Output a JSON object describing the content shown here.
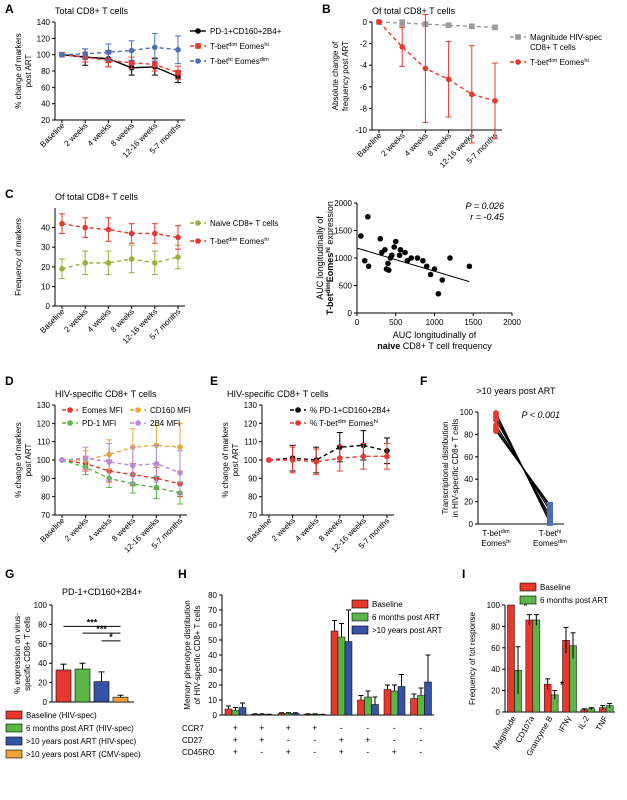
{
  "colors": {
    "red": "#e8382d",
    "blue": "#4a6fb5",
    "green": "#5bb547",
    "darkblue": "#3552a6",
    "orange": "#f1a23b",
    "gray": "#9a9a9a",
    "olive": "#9ab03a",
    "purple": "#b98ad6",
    "black": "#000000",
    "gold": "#e8a93a"
  },
  "time_cats": [
    "Baseline",
    "2 weeks",
    "4 weeks",
    "8 weeks",
    "12-16 weeks",
    "5-7 months"
  ],
  "chart_data": [
    {
      "panel": "A",
      "title": "Total CD8+ T cells",
      "type": "line",
      "ylabel": [
        "% change of markers",
        "post ART"
      ],
      "ylim": [
        20,
        140
      ],
      "yticks": [
        20,
        40,
        60,
        80,
        100,
        120,
        140
      ],
      "series": [
        {
          "name": "PD-1+CD160+2B4+",
          "color": "#000000",
          "dash": false,
          "values": [
            100,
            97,
            95,
            84,
            85,
            73
          ],
          "err": [
            0,
            10,
            10,
            9,
            10,
            7
          ]
        },
        {
          "name": "T-bet^dim Eomes^hi",
          "color": "#e8382d",
          "dash": true,
          "values": [
            100,
            97,
            93,
            90,
            88,
            78
          ],
          "err": [
            0,
            6,
            8,
            7,
            8,
            8
          ]
        },
        {
          "name": "T-bet^hi Eomes^dim",
          "color": "#4a6fb5",
          "dash": true,
          "values": [
            100,
            101,
            103,
            105,
            109,
            106
          ],
          "err": [
            0,
            6,
            10,
            12,
            17,
            17
          ]
        }
      ]
    },
    {
      "panel": "B",
      "title": "Of total CD8+ T cells",
      "type": "line",
      "ylabel": [
        "Absolute change of",
        "frequency post ART"
      ],
      "ylim": [
        -10,
        0
      ],
      "yticks": [
        -10,
        -8,
        -6,
        -4,
        -2,
        0
      ],
      "series": [
        {
          "name": "Magnitude HIV-spec CD8+ T cells",
          "color": "#9a9a9a",
          "dash": true,
          "values": [
            0,
            -0.1,
            -0.2,
            -0.3,
            -0.4,
            -0.5
          ],
          "err": [
            0,
            0.3,
            0.2,
            0.2,
            0.2,
            0.2
          ]
        },
        {
          "name": "T-bet^dim Eomes^hi",
          "color": "#e8382d",
          "dash": true,
          "values": [
            0,
            -2.3,
            -4.3,
            -5.3,
            -6.7,
            -7.3
          ],
          "err": [
            0,
            1.8,
            5.0,
            3.5,
            4.5,
            3.5
          ]
        }
      ]
    },
    {
      "panel": "C",
      "title": "Of total CD8+ T cells",
      "type": "line",
      "ylabel": [
        "Frequency of markers"
      ],
      "ylim": [
        0,
        50
      ],
      "yticks": [
        0,
        10,
        20,
        30,
        40
      ],
      "series": [
        {
          "name": "Naive CD8+ T cells",
          "color": "#9ab03a",
          "dash": true,
          "values": [
            19,
            22,
            22,
            24,
            22,
            25
          ],
          "err": [
            5,
            6,
            6,
            7,
            6,
            6
          ]
        },
        {
          "name": "T-bet^dim Eomes^hi",
          "color": "#e8382d",
          "dash": true,
          "values": [
            42,
            40,
            39,
            37,
            37,
            35
          ],
          "err": [
            5,
            5,
            6,
            5,
            5,
            6
          ]
        }
      ]
    },
    {
      "panel": "C2",
      "type": "scatter",
      "stats": [
        "P = 0.026",
        "r = -0.45"
      ],
      "xlabel": [
        "AUC longitudinally of",
        "naive CD8+ T cell frequency"
      ],
      "ylabel": [
        "AUC longitudinally of",
        "T-bet^dim Eomes^hi expression"
      ],
      "xlim": [
        0,
        2000
      ],
      "ylim": [
        0,
        2000
      ],
      "xticks": [
        0,
        500,
        1000,
        1500,
        2000
      ],
      "yticks": [
        0,
        500,
        1000,
        1500,
        2000
      ],
      "points": [
        [
          50,
          1400
        ],
        [
          100,
          950
        ],
        [
          140,
          1750
        ],
        [
          150,
          850
        ],
        [
          300,
          1350
        ],
        [
          320,
          1100
        ],
        [
          360,
          1150
        ],
        [
          380,
          800
        ],
        [
          400,
          900
        ],
        [
          410,
          780
        ],
        [
          430,
          1000
        ],
        [
          450,
          1050
        ],
        [
          480,
          1200
        ],
        [
          500,
          1300
        ],
        [
          550,
          1050
        ],
        [
          560,
          1150
        ],
        [
          620,
          1100
        ],
        [
          650,
          950
        ],
        [
          700,
          1000
        ],
        [
          780,
          1000
        ],
        [
          850,
          950
        ],
        [
          900,
          850
        ],
        [
          950,
          700
        ],
        [
          1000,
          800
        ],
        [
          1050,
          350
        ],
        [
          1100,
          600
        ],
        [
          1200,
          1000
        ],
        [
          1450,
          850
        ]
      ],
      "fit": [
        [
          0,
          1180
        ],
        [
          1450,
          570
        ]
      ]
    },
    {
      "panel": "D",
      "title": "HIV-specific CD8+ T cells",
      "type": "line",
      "ylabel": [
        "% change of markers",
        "post ART"
      ],
      "ylim": [
        70,
        130
      ],
      "yticks": [
        70,
        80,
        90,
        100,
        110,
        120,
        130
      ],
      "series": [
        {
          "name": "Eomes MFI",
          "color": "#e8382d",
          "dash": true,
          "values": [
            100,
            98,
            94,
            92,
            90,
            87
          ],
          "err": [
            0,
            4,
            6,
            6,
            6,
            7
          ]
        },
        {
          "name": "PD-1 MFI",
          "color": "#5bb547",
          "dash": true,
          "values": [
            100,
            96,
            90,
            87,
            85,
            82
          ],
          "err": [
            0,
            4,
            5,
            5,
            6,
            6
          ]
        },
        {
          "name": "CD160 MFI",
          "color": "#e8a93a",
          "dash": true,
          "values": [
            100,
            100,
            103,
            107,
            108,
            107
          ],
          "err": [
            0,
            5,
            8,
            10,
            11,
            13
          ]
        },
        {
          "name": "2B4 MFI",
          "color": "#b98ad6",
          "dash": true,
          "values": [
            100,
            101,
            99,
            97,
            98,
            93
          ],
          "err": [
            0,
            6,
            10,
            10,
            10,
            12
          ]
        }
      ]
    },
    {
      "panel": "E",
      "title": "HIV-specific CD8+ T cells",
      "type": "line",
      "ylabel": [
        "% change of markers",
        "post ART"
      ],
      "ylim": [
        70,
        130
      ],
      "yticks": [
        70,
        80,
        90,
        100,
        110,
        120,
        130
      ],
      "series": [
        {
          "name": "% PD-1+CD160+2B4+",
          "color": "#000000",
          "dash": true,
          "values": [
            100,
            101,
            100,
            107,
            108,
            105
          ],
          "err": [
            0,
            7,
            7,
            8,
            8,
            7
          ]
        },
        {
          "name": "% T-bet^dim Eomes^hi",
          "color": "#e8382d",
          "dash": true,
          "values": [
            100,
            100,
            99,
            101,
            102,
            102
          ],
          "err": [
            0,
            7,
            7,
            7,
            7,
            7
          ]
        }
      ]
    },
    {
      "panel": "F",
      "title": ">10 years post ART",
      "type": "paired",
      "stats": [
        "P < 0.001"
      ],
      "ylabel": [
        "Transcriptional distribution",
        "in HIV-specific CD8+ T cells"
      ],
      "ylim": [
        0,
        100
      ],
      "yticks": [
        0,
        20,
        40,
        60,
        80,
        100
      ],
      "categories": [
        "T-bet^dim Eomes^hi",
        "T-bet^hi Eomes^dim"
      ],
      "pairs": [
        [
          99,
          1
        ],
        [
          96,
          4
        ],
        [
          93,
          7
        ],
        [
          88,
          12
        ],
        [
          85,
          15
        ],
        [
          83,
          17
        ]
      ]
    },
    {
      "panel": "G",
      "title": "PD-1+CD160+2B4+",
      "type": "bar",
      "ylabel": [
        "% expression on virus-",
        "specific CD8+ T cells"
      ],
      "ylim": [
        0,
        100
      ],
      "yticks": [
        0,
        20,
        40,
        60,
        80,
        100
      ],
      "series": [
        {
          "name": "Baseline (HIV-spec)",
          "color": "#e8382d",
          "value": 33,
          "err": 6
        },
        {
          "name": "6 months post ART (HIV-spec)",
          "color": "#5bb547",
          "value": 34,
          "err": 6
        },
        {
          "name": ">10 years post ART (HIV-spec)",
          "color": "#3552a6",
          "value": 21,
          "err": 10
        },
        {
          "name": ">10 years post ART (CMV-spec)",
          "color": "#f1a23b",
          "value": 5,
          "err": 2
        }
      ],
      "significance": [
        {
          "from": 0,
          "to": 3,
          "label": "***"
        },
        {
          "from": 1,
          "to": 3,
          "label": "***"
        },
        {
          "from": 2,
          "to": 3,
          "label": "*"
        }
      ]
    },
    {
      "panel": "H",
      "type": "bar",
      "ylabel": [
        "Memory phenotype distribution",
        "of HIV-specific CD8+ T cells"
      ],
      "ylim": [
        0,
        80
      ],
      "yticks": [
        0,
        10,
        20,
        30,
        40,
        50,
        60,
        70,
        80
      ],
      "row_labels": [
        "CCR7",
        "CD27",
        "CD45RO"
      ],
      "phenotypes": [
        [
          "+",
          "+",
          "+"
        ],
        [
          "+",
          "+",
          "-"
        ],
        [
          "+",
          "-",
          "+"
        ],
        [
          "+",
          "-",
          "-"
        ],
        [
          "-",
          "+",
          "+"
        ],
        [
          "-",
          "+",
          "-"
        ],
        [
          "-",
          "-",
          "+"
        ],
        [
          "-",
          "-",
          "-"
        ]
      ],
      "series": [
        {
          "name": "Baseline",
          "color": "#e8382d",
          "values": [
            4,
            0.5,
            1,
            0.5,
            56,
            10,
            17,
            11
          ],
          "err": [
            2,
            0.3,
            0.5,
            0.3,
            7,
            3,
            3,
            3
          ]
        },
        {
          "name": "6 months post ART",
          "color": "#5bb547",
          "values": [
            3,
            0.5,
            1,
            0.5,
            52,
            12,
            16,
            13
          ],
          "err": [
            2,
            0.3,
            0.5,
            0.3,
            9,
            4,
            4,
            5
          ]
        },
        {
          "name": ">10 years post ART",
          "color": "#3552a6",
          "values": [
            5,
            0.3,
            1,
            0.3,
            49,
            7,
            19,
            22
          ],
          "err": [
            3,
            0.2,
            0.5,
            0.2,
            21,
            5,
            8,
            18
          ]
        }
      ]
    },
    {
      "panel": "I",
      "type": "bar",
      "ylabel": [
        "Frequency of tot response"
      ],
      "ylim": [
        0,
        100
      ],
      "yticks": [
        0,
        20,
        40,
        60,
        80,
        100
      ],
      "categories": [
        "Magnitude",
        "CD107a",
        "Granzyme B",
        "IFNγ",
        "IL-2",
        "TNF"
      ],
      "series": [
        {
          "name": "Baseline",
          "color": "#e8382d",
          "values": [
            100,
            86,
            26,
            67,
            2,
            4
          ],
          "err": [
            0,
            5,
            5,
            12,
            1,
            2
          ]
        },
        {
          "name": "6 months post ART",
          "color": "#5bb547",
          "values": [
            39,
            86,
            16,
            62,
            3,
            6
          ],
          "err": [
            22,
            5,
            4,
            12,
            1,
            2
          ]
        }
      ],
      "stars": [
        {
          "index": 0,
          "label": "*"
        },
        {
          "index": 2,
          "label": "*"
        }
      ]
    }
  ]
}
